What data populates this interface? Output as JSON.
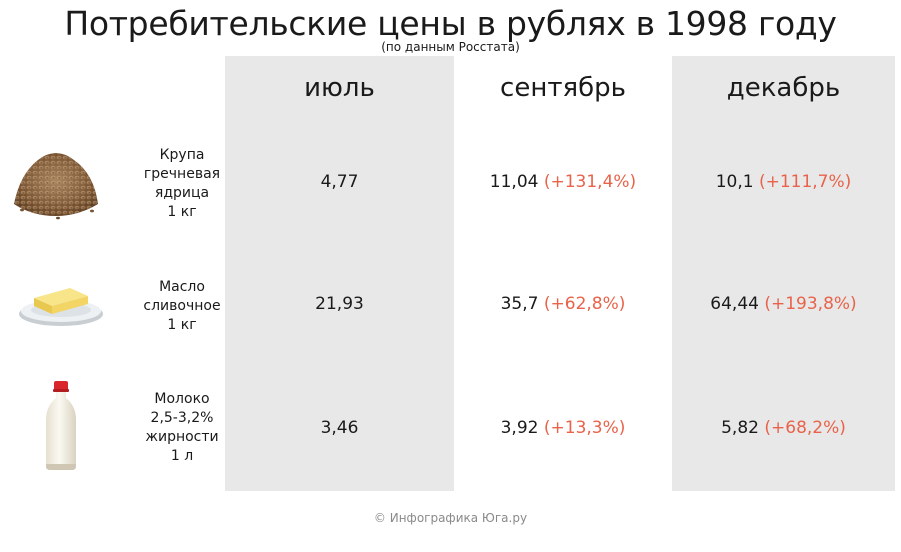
{
  "header": {
    "title": "Потребительские цены в рублях в 1998 году",
    "subtitle": "(по данным Росстата)"
  },
  "chart_data": {
    "type": "table",
    "title": "Потребительские цены в рублях в 1998 году",
    "subtitle": "(по данным Росстата)",
    "columns": [
      "июль",
      "сентябрь",
      "декабрь"
    ],
    "rows": [
      {
        "label_lines": [
          "Крупа",
          "гречневая",
          "ядрица",
          "1 кг"
        ],
        "icon": "buckwheat-icon",
        "values": [
          "4,77",
          "11,04",
          "10,1"
        ],
        "changes": [
          "",
          "(+131,4%)",
          "(+111,7%)"
        ]
      },
      {
        "label_lines": [
          "Масло",
          "сливочное",
          "1 кг"
        ],
        "icon": "butter-icon",
        "values": [
          "21,93",
          "35,7",
          "64,44"
        ],
        "changes": [
          "",
          "(+62,8%)",
          "(+193,8%)"
        ]
      },
      {
        "label_lines": [
          "Молоко",
          "2,5-3,2%",
          "жирности",
          "1 л"
        ],
        "icon": "milk-bottle-icon",
        "values": [
          "3,46",
          "3,92",
          "5,82"
        ],
        "changes": [
          "",
          "(+13,3%)",
          "(+68,2%)"
        ]
      }
    ]
  },
  "colors": {
    "column_bg": "#e8e8e8",
    "change_text": "#e8634a",
    "text": "#1a1a1a",
    "footer_text": "#8a8a8a"
  },
  "footer": "© Инфографика Юга.ру"
}
